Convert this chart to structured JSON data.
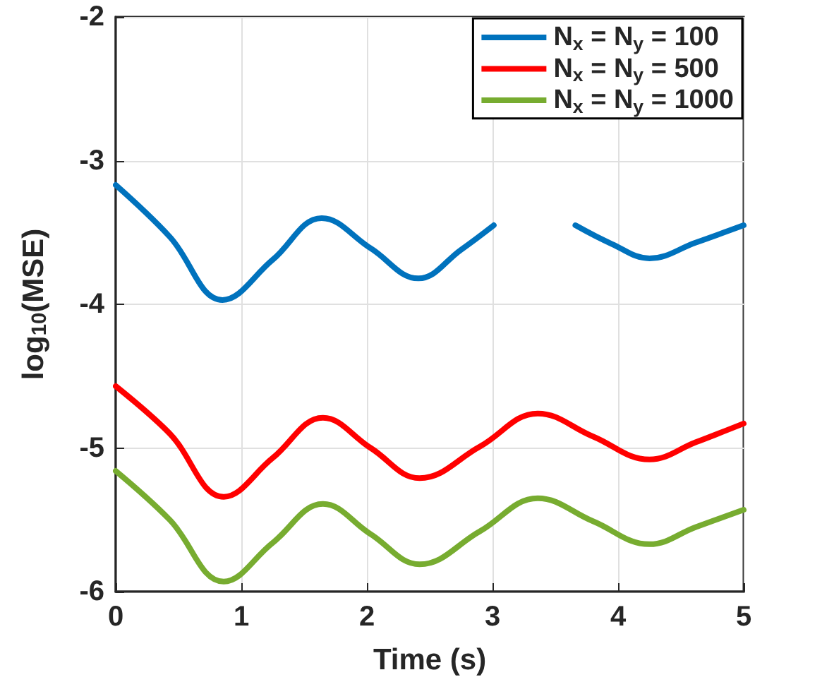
{
  "chart_data": {
    "type": "line",
    "xlabel": "Time (s)",
    "ylabel": "log$_{10}$(MSE)",
    "xlim": [
      0,
      5
    ],
    "xticks": [
      0,
      1,
      2,
      3,
      4,
      5
    ],
    "ylim": [
      -6,
      -2
    ],
    "yticks": [
      -6,
      -5,
      -4,
      -3,
      -2
    ],
    "grid": true,
    "legend": "top right",
    "marker": "none",
    "line_style": "solid",
    "series": [
      {
        "name": "N$_{x}$ = N$_{y}$ = 100",
        "color": "#0072bd",
        "x": [
          0,
          0.43,
          0.85,
          1.25,
          1.64,
          2.03,
          2.41,
          2.75,
          3.01,
          3.36,
          3.66,
          3.95,
          4.25,
          4.62,
          5
        ],
        "values": [
          -3.17,
          -3.53,
          -3.97,
          -3.69,
          -3.4,
          -3.61,
          -3.82,
          -3.62,
          -3.45,
          null,
          -3.45,
          -3.58,
          -3.68,
          -3.57,
          -3.45
        ]
      },
      {
        "name": "N$_{x}$ = N$_{y}$ = 500",
        "color": "#ff0000",
        "x": [
          0,
          0.43,
          0.86,
          1.25,
          1.65,
          2.03,
          2.42,
          2.9,
          3.36,
          3.8,
          4.25,
          4.62,
          5
        ],
        "values": [
          -4.57,
          -4.9,
          -5.34,
          -5.07,
          -4.79,
          -5.0,
          -5.21,
          -4.99,
          -4.76,
          -4.92,
          -5.08,
          -4.96,
          -4.83
        ]
      },
      {
        "name": "N$_{x}$ = N$_{y}$ = 1000",
        "color": "#77ac30",
        "x": [
          0,
          0.43,
          0.86,
          1.25,
          1.65,
          2.03,
          2.42,
          2.9,
          3.36,
          3.8,
          4.25,
          4.62,
          5
        ],
        "values": [
          -5.16,
          -5.5,
          -5.93,
          -5.66,
          -5.39,
          -5.6,
          -5.81,
          -5.58,
          -5.35,
          -5.51,
          -5.67,
          -5.55,
          -5.43
        ]
      }
    ]
  }
}
